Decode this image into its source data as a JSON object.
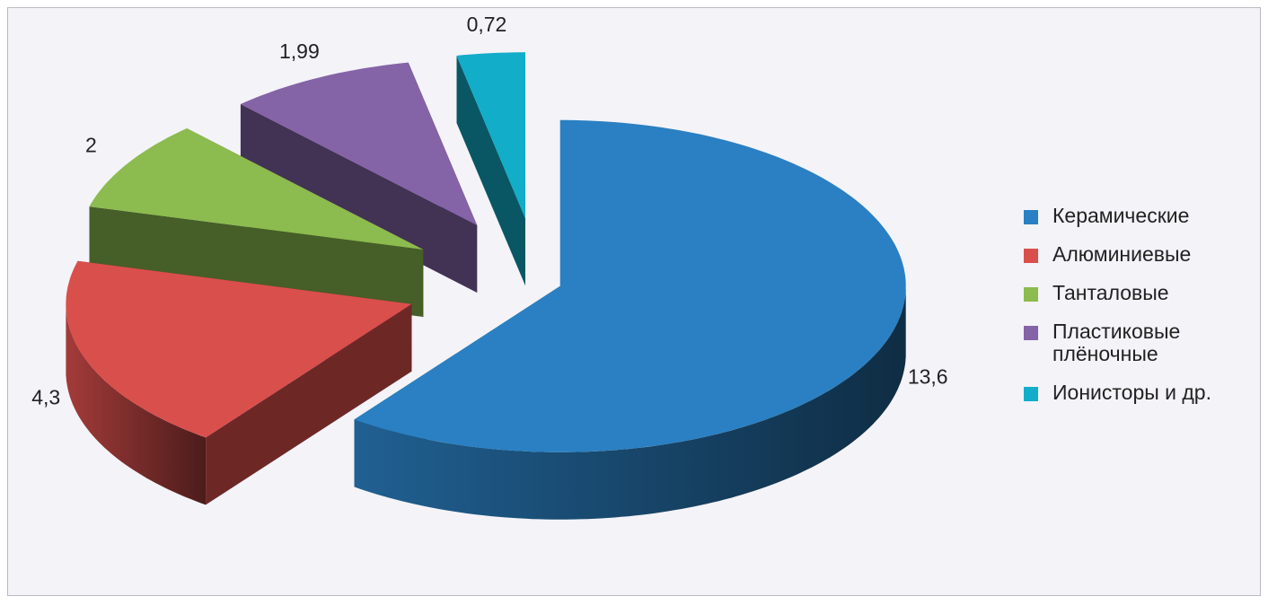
{
  "chart_data": {
    "type": "pie3d",
    "categories": [
      "Керамические",
      "Алюминиевые",
      "Танталовые",
      "Пластиковые плёночные",
      "Ионисторы и др."
    ],
    "values": [
      13.6,
      4.3,
      2,
      1.99,
      0.72
    ],
    "value_labels": [
      "13,6",
      "4,3",
      "2",
      "1,99",
      "0,72"
    ],
    "colors": [
      "#2a80c2",
      "#d94f4c",
      "#8cbb4f",
      "#8463a7",
      "#12adc8"
    ],
    "legend": "right"
  }
}
